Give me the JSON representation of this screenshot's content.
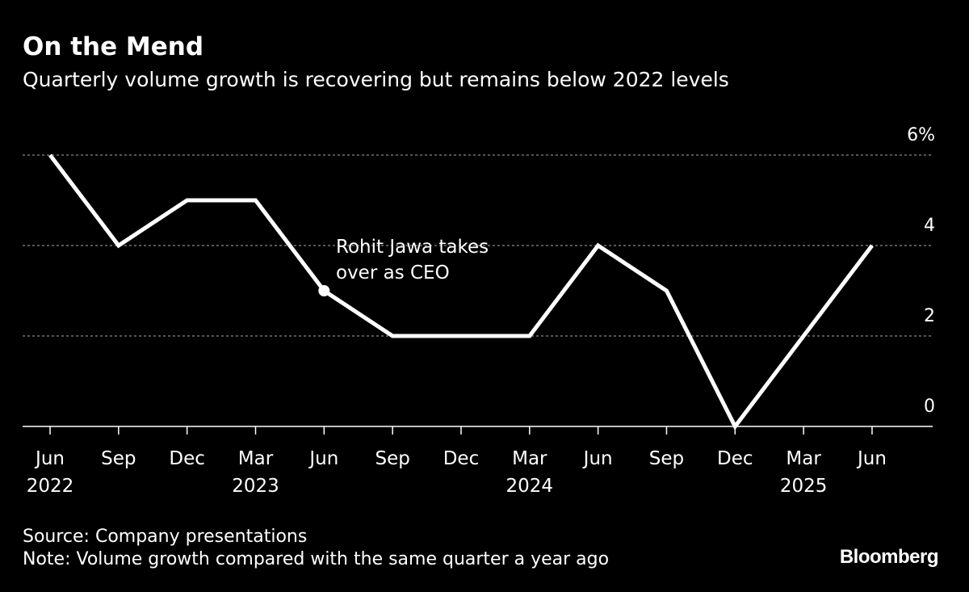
{
  "title": "On the Mend",
  "subtitle": "Quarterly volume growth is recovering but remains below 2022 levels",
  "source": "Source: Company presentations",
  "note": "Note: Volume growth compared with the same quarter a year ago",
  "logo": "Bloomberg",
  "colors": {
    "background": "#000000",
    "line": "#ffffff",
    "grid": "#888888"
  },
  "chart_data": {
    "type": "line",
    "x": [
      "Jun 2022",
      "Sep 2022",
      "Dec 2022",
      "Mar 2023",
      "Jun 2023",
      "Sep 2023",
      "Dec 2023",
      "Mar 2024",
      "Jun 2024",
      "Sep 2024",
      "Dec 2024",
      "Mar 2025",
      "Jun 2025"
    ],
    "x_tick_labels": [
      [
        "Jun",
        "2022"
      ],
      [
        "Sep",
        ""
      ],
      [
        "Dec",
        ""
      ],
      [
        "Mar",
        "2023"
      ],
      [
        "Jun",
        ""
      ],
      [
        "Sep",
        ""
      ],
      [
        "Dec",
        ""
      ],
      [
        "Mar",
        "2024"
      ],
      [
        "Jun",
        ""
      ],
      [
        "Sep",
        ""
      ],
      [
        "Dec",
        ""
      ],
      [
        "Mar",
        "2025"
      ],
      [
        "Jun",
        ""
      ]
    ],
    "values": [
      6,
      4,
      5,
      5,
      3,
      2,
      2,
      2,
      4,
      3,
      0,
      2,
      4
    ],
    "ylim": [
      0,
      6
    ],
    "y_ticks": [
      0,
      2,
      4,
      6
    ],
    "y_tick_labels": [
      "0",
      "2",
      "4",
      "6%"
    ],
    "y_axis_side": "right",
    "grid": true,
    "annotation": {
      "x": "Jun 2023",
      "value": 3,
      "lines": [
        "Rohit Jawa takes",
        "over as CEO"
      ]
    }
  }
}
